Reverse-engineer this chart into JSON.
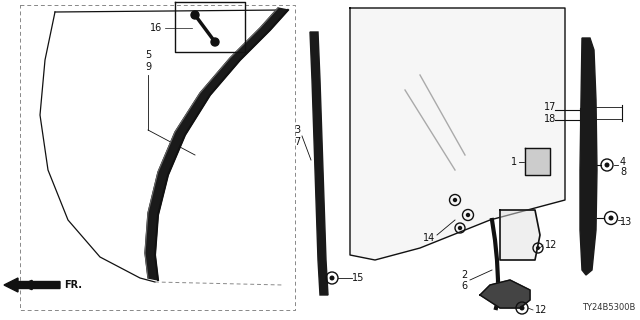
{
  "bg_color": "#ffffff",
  "line_color": "#111111",
  "gray_color": "#888888",
  "part_number": "TY24B5300B",
  "figsize": [
    6.4,
    3.2
  ],
  "dpi": 100
}
